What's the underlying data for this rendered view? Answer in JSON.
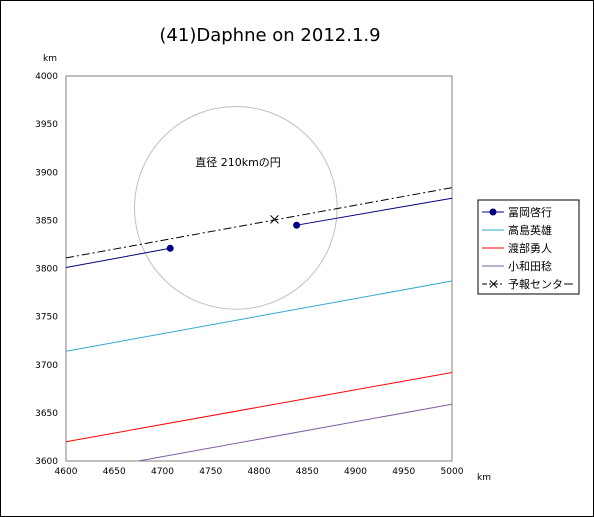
{
  "chart_data": {
    "type": "line",
    "title": "(41)Daphne on 2012.1.9",
    "xlabel": "km",
    "ylabel": "km",
    "xlim": [
      4600,
      5000
    ],
    "ylim": [
      3600,
      4000
    ],
    "xticks": [
      4600,
      4650,
      4700,
      4750,
      4800,
      4850,
      4900,
      4950,
      5000
    ],
    "yticks": [
      3600,
      3650,
      3700,
      3750,
      3800,
      3850,
      3900,
      3950,
      4000
    ],
    "grid": false,
    "legend_position": "right",
    "series": [
      {
        "name": "冨岡啓行",
        "color": "#000080",
        "style": "solid-markers",
        "segments": [
          [
            [
              4600,
              3801
            ],
            [
              4708,
              3821
            ]
          ],
          [
            [
              4839,
              3845
            ],
            [
              5000,
              3873
            ]
          ]
        ]
      },
      {
        "name": "高島英雄",
        "color": "#33aacc",
        "style": "solid",
        "segments": [
          [
            [
              4600,
              3714
            ],
            [
              5000,
              3787
            ]
          ]
        ]
      },
      {
        "name": "渡部勇人",
        "color": "#ff0000",
        "style": "solid",
        "segments": [
          [
            [
              4600,
              3620
            ],
            [
              5000,
              3692
            ]
          ]
        ]
      },
      {
        "name": "小和田稔",
        "color": "#8060a0",
        "style": "solid",
        "segments": [
          [
            [
              4675,
              3600
            ],
            [
              5000,
              3659
            ]
          ]
        ]
      },
      {
        "name": "予報センター",
        "color": "#000000",
        "style": "dashdot",
        "segments": [
          [
            [
              4600,
              3811
            ],
            [
              5000,
              3884
            ]
          ]
        ]
      }
    ],
    "center_marker": {
      "x": 4816,
      "y": 3851
    },
    "circle": {
      "cx": 4776,
      "cy": 3863,
      "diameter_km": 210,
      "color": "#c0c0c0"
    },
    "annotation": "直径 210kmの円"
  }
}
